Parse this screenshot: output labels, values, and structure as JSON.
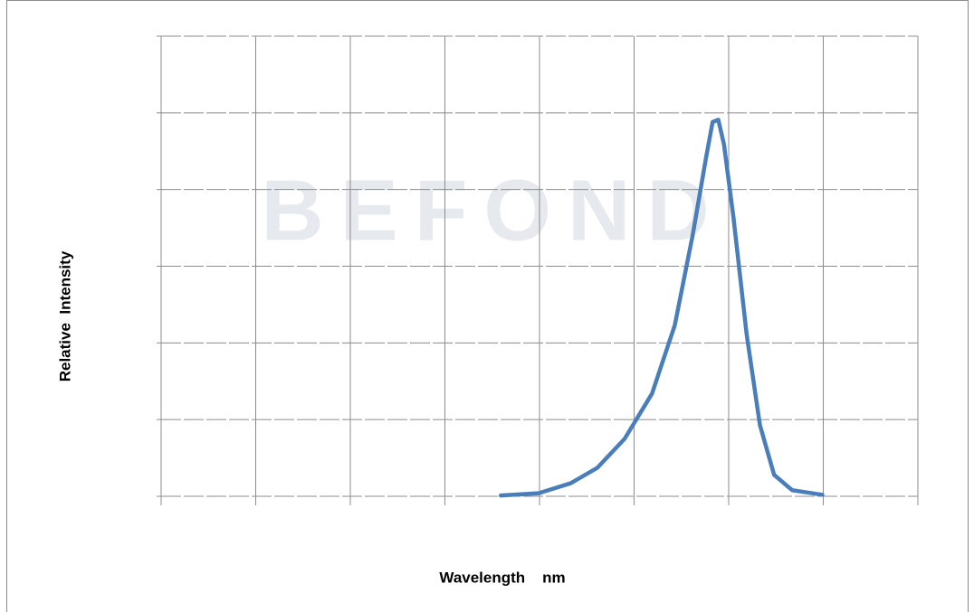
{
  "chart_data": {
    "type": "line",
    "watermark": "BEFOND",
    "x_label": "Wavelength    nm",
    "y_label": "Relative  Intensity",
    "xlim": [
      0,
      8
    ],
    "ylim": [
      0,
      6
    ],
    "xticks": [
      0,
      1,
      2,
      3,
      4,
      5,
      6,
      7,
      8
    ],
    "yticks": [
      0,
      1,
      2,
      3,
      4,
      5,
      6
    ],
    "grid": true,
    "series": [
      {
        "color": "#4a7ebb",
        "x": [
          3.59,
          3.99,
          4.33,
          4.61,
          4.9,
          5.19,
          5.43,
          5.62,
          5.76,
          5.83,
          5.89,
          5.95,
          6.05,
          6.19,
          6.33,
          6.48,
          6.67,
          6.99
        ],
        "values": [
          0.01,
          0.04,
          0.17,
          0.37,
          0.75,
          1.34,
          2.23,
          3.41,
          4.41,
          4.88,
          4.91,
          4.59,
          3.64,
          2.11,
          0.93,
          0.28,
          0.08,
          0.02
        ]
      }
    ]
  }
}
